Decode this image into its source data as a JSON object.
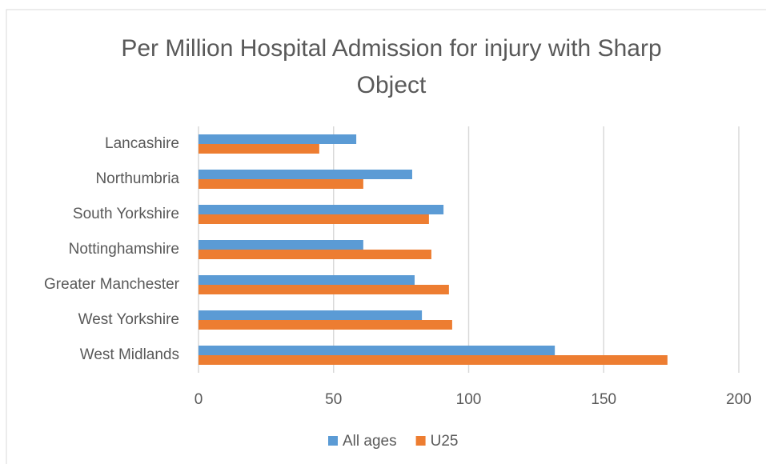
{
  "chart_data": {
    "type": "hbar",
    "title": "Per Million Hospital Admission for injury with Sharp Object",
    "categories": [
      "Lancashire",
      "Northumbria",
      "South Yorkshire",
      "Nottinghamshire",
      "Greater Manchester",
      "West Yorkshire",
      "West Midlands"
    ],
    "series": [
      {
        "name": "All ages",
        "color": "#5b9bd5",
        "values": [
          58.4,
          79.1,
          90.7,
          61,
          80,
          82.7,
          131.9
        ]
      },
      {
        "name": "U25",
        "color": "#ed7d31",
        "values": [
          44.7,
          61,
          85.3,
          86.2,
          92.7,
          93.9,
          173.6
        ]
      }
    ],
    "xlim": [
      0,
      200
    ],
    "xticks": [
      0,
      50,
      100,
      150,
      200
    ],
    "grid": true,
    "legend": "bottom"
  }
}
